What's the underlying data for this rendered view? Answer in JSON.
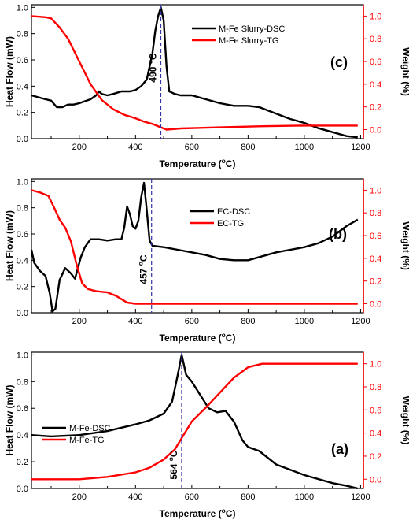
{
  "colors": {
    "dsc": "#000000",
    "tg": "#ff0000",
    "marker": "#3333aa",
    "axis_right": "#ff0000"
  },
  "chart_data": [
    {
      "type": "line",
      "panel_label": "(c)",
      "xlabel": "Temperature (oC)",
      "ylabel_left": "Heat Flow (mW)",
      "ylabel_right": "Weight (%)",
      "xlim": [
        30,
        1210
      ],
      "ylim_left": [
        0,
        1.02
      ],
      "ylim_right": [
        -0.08,
        1.1
      ],
      "xticks": [
        "200",
        "400",
        "600",
        "800",
        "1000",
        "1200"
      ],
      "yticks_left": [
        "0.0",
        "0.2",
        "0.4",
        "0.6",
        "0.8",
        "1.0"
      ],
      "yticks_right": [
        "0.0",
        "0.2",
        "0.4",
        "0.6",
        "0.8",
        "1.0"
      ],
      "legend": {
        "placement": "top-center",
        "entries": [
          "M-Fe Slurry-DSC",
          "M-Fe Slurry-TG"
        ]
      },
      "annotation": {
        "text": "490 oC",
        "x": 490
      },
      "series": [
        {
          "name": "M-Fe Slurry-DSC",
          "axis": "left",
          "x": [
            30,
            80,
            100,
            120,
            140,
            160,
            180,
            200,
            240,
            260,
            270,
            280,
            300,
            320,
            350,
            380,
            400,
            420,
            440,
            460,
            470,
            480,
            490,
            500,
            510,
            520,
            540,
            560,
            600,
            650,
            700,
            750,
            800,
            840,
            900,
            950,
            1000,
            1050,
            1100,
            1150,
            1190
          ],
          "y": [
            0.33,
            0.3,
            0.29,
            0.24,
            0.24,
            0.26,
            0.26,
            0.27,
            0.3,
            0.33,
            0.36,
            0.34,
            0.33,
            0.34,
            0.36,
            0.36,
            0.37,
            0.4,
            0.45,
            0.65,
            0.82,
            0.93,
            1.0,
            0.9,
            0.55,
            0.36,
            0.34,
            0.33,
            0.33,
            0.3,
            0.27,
            0.25,
            0.25,
            0.24,
            0.19,
            0.15,
            0.12,
            0.08,
            0.05,
            0.02,
            0.01
          ]
        },
        {
          "name": "M-Fe Slurry-TG",
          "axis": "right",
          "x": [
            30,
            80,
            100,
            130,
            160,
            200,
            240,
            280,
            320,
            360,
            400,
            430,
            460,
            490,
            510,
            560,
            700,
            850,
            1000,
            1100,
            1190
          ],
          "y": [
            1.0,
            0.99,
            0.98,
            0.9,
            0.8,
            0.6,
            0.4,
            0.26,
            0.18,
            0.13,
            0.1,
            0.07,
            0.05,
            0.02,
            0.0,
            0.01,
            0.02,
            0.03,
            0.035,
            0.035,
            0.035
          ]
        }
      ]
    },
    {
      "type": "line",
      "panel_label": "(b)",
      "xlabel": "Temperature (oC)",
      "ylabel_left": "Heat Flow (mW)",
      "ylabel_right": "Weight (%)",
      "xlim": [
        30,
        1210
      ],
      "ylim_left": [
        0,
        1.02
      ],
      "ylim_right": [
        -0.08,
        1.1
      ],
      "xticks": [
        "200",
        "400",
        "600",
        "800",
        "1000",
        "1200"
      ],
      "yticks_left": [
        "0.0",
        "0.2",
        "0.4",
        "0.6",
        "0.8",
        "1.0"
      ],
      "yticks_right": [
        "0.0",
        "0.2",
        "0.4",
        "0.6",
        "0.8",
        "1.0"
      ],
      "legend": {
        "placement": "center-right",
        "entries": [
          "EC-DSC",
          "EC-TG"
        ]
      },
      "annotation": {
        "text": "457 oC",
        "x": 457
      },
      "series": [
        {
          "name": "EC-DSC",
          "axis": "left",
          "x": [
            30,
            40,
            60,
            80,
            95,
            105,
            115,
            130,
            150,
            170,
            185,
            195,
            205,
            220,
            240,
            270,
            300,
            330,
            350,
            360,
            370,
            380,
            390,
            400,
            410,
            420,
            430,
            440,
            450,
            460,
            500,
            550,
            600,
            650,
            700,
            750,
            800,
            850,
            900,
            950,
            1000,
            1050,
            1100,
            1150,
            1190
          ],
          "y": [
            0.48,
            0.38,
            0.32,
            0.28,
            0.15,
            0.01,
            0.03,
            0.25,
            0.34,
            0.3,
            0.26,
            0.34,
            0.42,
            0.5,
            0.56,
            0.56,
            0.55,
            0.56,
            0.56,
            0.65,
            0.81,
            0.75,
            0.66,
            0.64,
            0.7,
            0.88,
            0.99,
            0.78,
            0.55,
            0.51,
            0.5,
            0.48,
            0.46,
            0.44,
            0.41,
            0.4,
            0.4,
            0.43,
            0.46,
            0.48,
            0.5,
            0.53,
            0.58,
            0.66,
            0.71
          ]
        },
        {
          "name": "EC-TG",
          "axis": "right",
          "x": [
            30,
            60,
            90,
            110,
            130,
            150,
            170,
            190,
            210,
            230,
            260,
            300,
            330,
            350,
            370,
            400,
            600,
            800,
            1000,
            1190
          ],
          "y": [
            1.0,
            0.98,
            0.95,
            0.85,
            0.74,
            0.67,
            0.55,
            0.35,
            0.18,
            0.13,
            0.11,
            0.1,
            0.07,
            0.04,
            0.01,
            0.0,
            0.0,
            0.0,
            0.0,
            0.0
          ]
        }
      ]
    },
    {
      "type": "line",
      "panel_label": "(a)",
      "xlabel": "Temperature (oC)",
      "ylabel_left": "Heat Flow (mW)",
      "ylabel_right": "Weight (%)",
      "xlim": [
        30,
        1210
      ],
      "ylim_left": [
        0,
        1.02
      ],
      "ylim_right": [
        -0.08,
        1.1
      ],
      "xticks": [
        "200",
        "400",
        "600",
        "800",
        "1000",
        "1200"
      ],
      "yticks_left": [
        "0.0",
        "0.2",
        "0.4",
        "0.6",
        "0.8",
        "1.0"
      ],
      "yticks_right": [
        "0.0",
        "0.2",
        "0.4",
        "0.6",
        "0.8",
        "1.0"
      ],
      "legend": {
        "placement": "center-left",
        "entries": [
          "M-Fe-DSC",
          "M-Fe-TG"
        ]
      },
      "annotation": {
        "text": "564 oC",
        "x": 564
      },
      "series": [
        {
          "name": "M-Fe-DSC",
          "axis": "left",
          "x": [
            30,
            100,
            200,
            300,
            400,
            450,
            500,
            530,
            550,
            564,
            580,
            600,
            630,
            660,
            690,
            720,
            750,
            780,
            800,
            840,
            900,
            1000,
            1100,
            1150,
            1190
          ],
          "y": [
            0.4,
            0.39,
            0.4,
            0.43,
            0.48,
            0.51,
            0.56,
            0.65,
            0.85,
            1.0,
            0.85,
            0.8,
            0.7,
            0.6,
            0.57,
            0.58,
            0.5,
            0.36,
            0.31,
            0.28,
            0.18,
            0.1,
            0.04,
            0.02,
            0.0
          ]
        },
        {
          "name": "M-Fe-TG",
          "axis": "right",
          "x": [
            30,
            200,
            300,
            400,
            450,
            500,
            540,
            570,
            600,
            650,
            700,
            750,
            800,
            850,
            900,
            1000,
            1100,
            1190
          ],
          "y": [
            0.0,
            0.0,
            0.02,
            0.06,
            0.1,
            0.17,
            0.26,
            0.38,
            0.5,
            0.62,
            0.75,
            0.88,
            0.97,
            1.0,
            1.0,
            1.0,
            1.0,
            1.0
          ]
        }
      ]
    }
  ]
}
